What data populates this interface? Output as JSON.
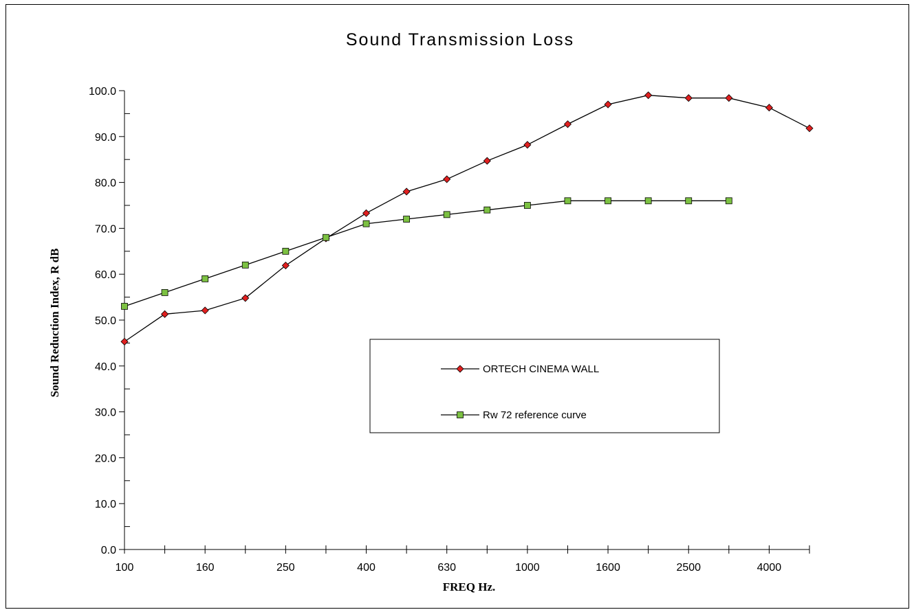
{
  "chart_data": {
    "type": "line",
    "title": "Sound Transmission Loss",
    "xlabel": "FREQ Hz.",
    "ylabel": "Sound Reduction Index, R dB",
    "x_points": [
      "100",
      "125",
      "160",
      "200",
      "250",
      "315",
      "400",
      "500",
      "630",
      "800",
      "1000",
      "1250",
      "1600",
      "2000",
      "2500",
      "3150",
      "4000",
      "5000"
    ],
    "x_tick_labels": [
      "100",
      "",
      "160",
      "",
      "250",
      "",
      "400",
      "",
      "630",
      "",
      "1000",
      "",
      "1600",
      "",
      "2500",
      "",
      "4000",
      ""
    ],
    "ylim": [
      0,
      100
    ],
    "y_major_step": 10,
    "y_tick_labels": [
      "0.0",
      "10.0",
      "20.0",
      "30.0",
      "40.0",
      "50.0",
      "60.0",
      "70.0",
      "80.0",
      "90.0",
      "100.0"
    ],
    "grid": false,
    "legend_position": "center-right",
    "series": [
      {
        "name": "ORTECH CINEMA WALL",
        "marker": "diamond",
        "color": "#e02020",
        "values": [
          45.3,
          51.3,
          52.1,
          54.8,
          61.9,
          67.8,
          73.3,
          78.0,
          80.7,
          84.7,
          88.2,
          92.7,
          97.0,
          99.0,
          98.4,
          98.4,
          96.3,
          91.8
        ]
      },
      {
        "name": "Rw 72 reference curve",
        "marker": "square",
        "color": "#7cc142",
        "values": [
          53,
          56,
          59,
          62,
          65,
          68,
          71,
          72,
          73,
          74,
          75,
          76,
          76,
          76,
          76,
          76,
          null,
          null
        ]
      }
    ]
  }
}
